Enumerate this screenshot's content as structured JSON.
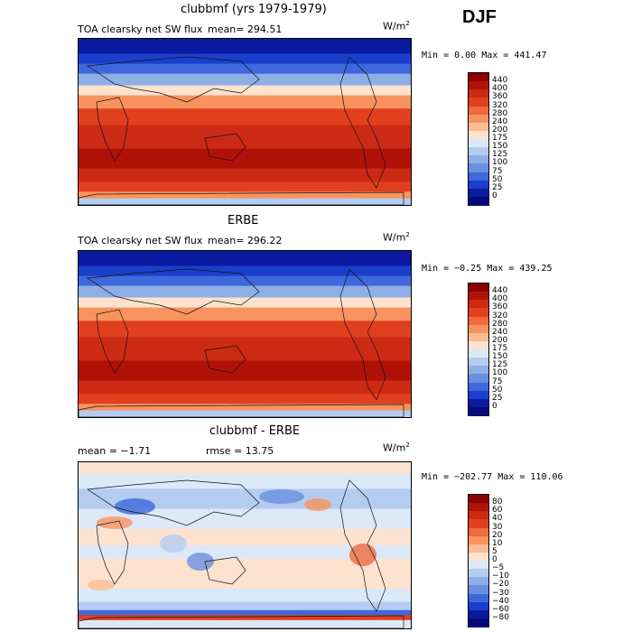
{
  "season": "DJF",
  "panels": [
    {
      "title": "clubbmf (yrs 1979-1979)",
      "field": "TOA clearsky net SW flux",
      "mean": "mean= 294.51",
      "units": "W/m",
      "units_sup": "2",
      "minmax": "Min =    0.00 Max = 441.47",
      "colorbar": {
        "labels": [
          "440",
          "400",
          "360",
          "320",
          "280",
          "240",
          "200",
          "175",
          "150",
          "125",
          "100",
          "75",
          "50",
          "25",
          "0"
        ],
        "colors": [
          "#8b0000",
          "#b01208",
          "#cc2a14",
          "#e0401e",
          "#ef6a3c",
          "#f8935e",
          "#fcbb93",
          "#fde3cf",
          "#dbe8f8",
          "#b4ccf0",
          "#8eaee6",
          "#6a8ee0",
          "#3f68dc",
          "#1a3fcc",
          "#0a1aa0",
          "#050a78"
        ]
      },
      "kind": "abs"
    },
    {
      "title": "ERBE",
      "field": "TOA clearsky net SW flux",
      "mean": "mean= 296.22",
      "units": "W/m",
      "units_sup": "2",
      "minmax": "Min =  −0.25 Max = 439.25",
      "colorbar": {
        "labels": [
          "440",
          "400",
          "360",
          "320",
          "280",
          "240",
          "200",
          "175",
          "150",
          "125",
          "100",
          "75",
          "50",
          "25",
          "0"
        ],
        "colors": [
          "#8b0000",
          "#b01208",
          "#cc2a14",
          "#e0401e",
          "#ef6a3c",
          "#f8935e",
          "#fcbb93",
          "#fde3cf",
          "#dbe8f8",
          "#b4ccf0",
          "#8eaee6",
          "#6a8ee0",
          "#3f68dc",
          "#1a3fcc",
          "#0a1aa0",
          "#050a78"
        ]
      },
      "kind": "abs2"
    },
    {
      "title": "clubbmf - ERBE",
      "mean": "mean =   −1.71",
      "rmse": "rmse =  13.75",
      "units": "W/m",
      "units_sup": "2",
      "minmax": "Min = −202.77 Max = 110.06",
      "colorbar": {
        "labels": [
          "80",
          "60",
          "40",
          "30",
          "20",
          "10",
          "5",
          "0",
          "−5",
          "−10",
          "−20",
          "−30",
          "−40",
          "−60",
          "−80"
        ],
        "colors": [
          "#8b0000",
          "#b01208",
          "#cc2a14",
          "#e0401e",
          "#ef6a3c",
          "#f8935e",
          "#fcbb93",
          "#fde3cf",
          "#dbe8f8",
          "#b4ccf0",
          "#8eaee6",
          "#6a8ee0",
          "#3f68dc",
          "#1a3fcc",
          "#0a1aa0",
          "#050a78"
        ]
      },
      "kind": "diff"
    }
  ]
}
